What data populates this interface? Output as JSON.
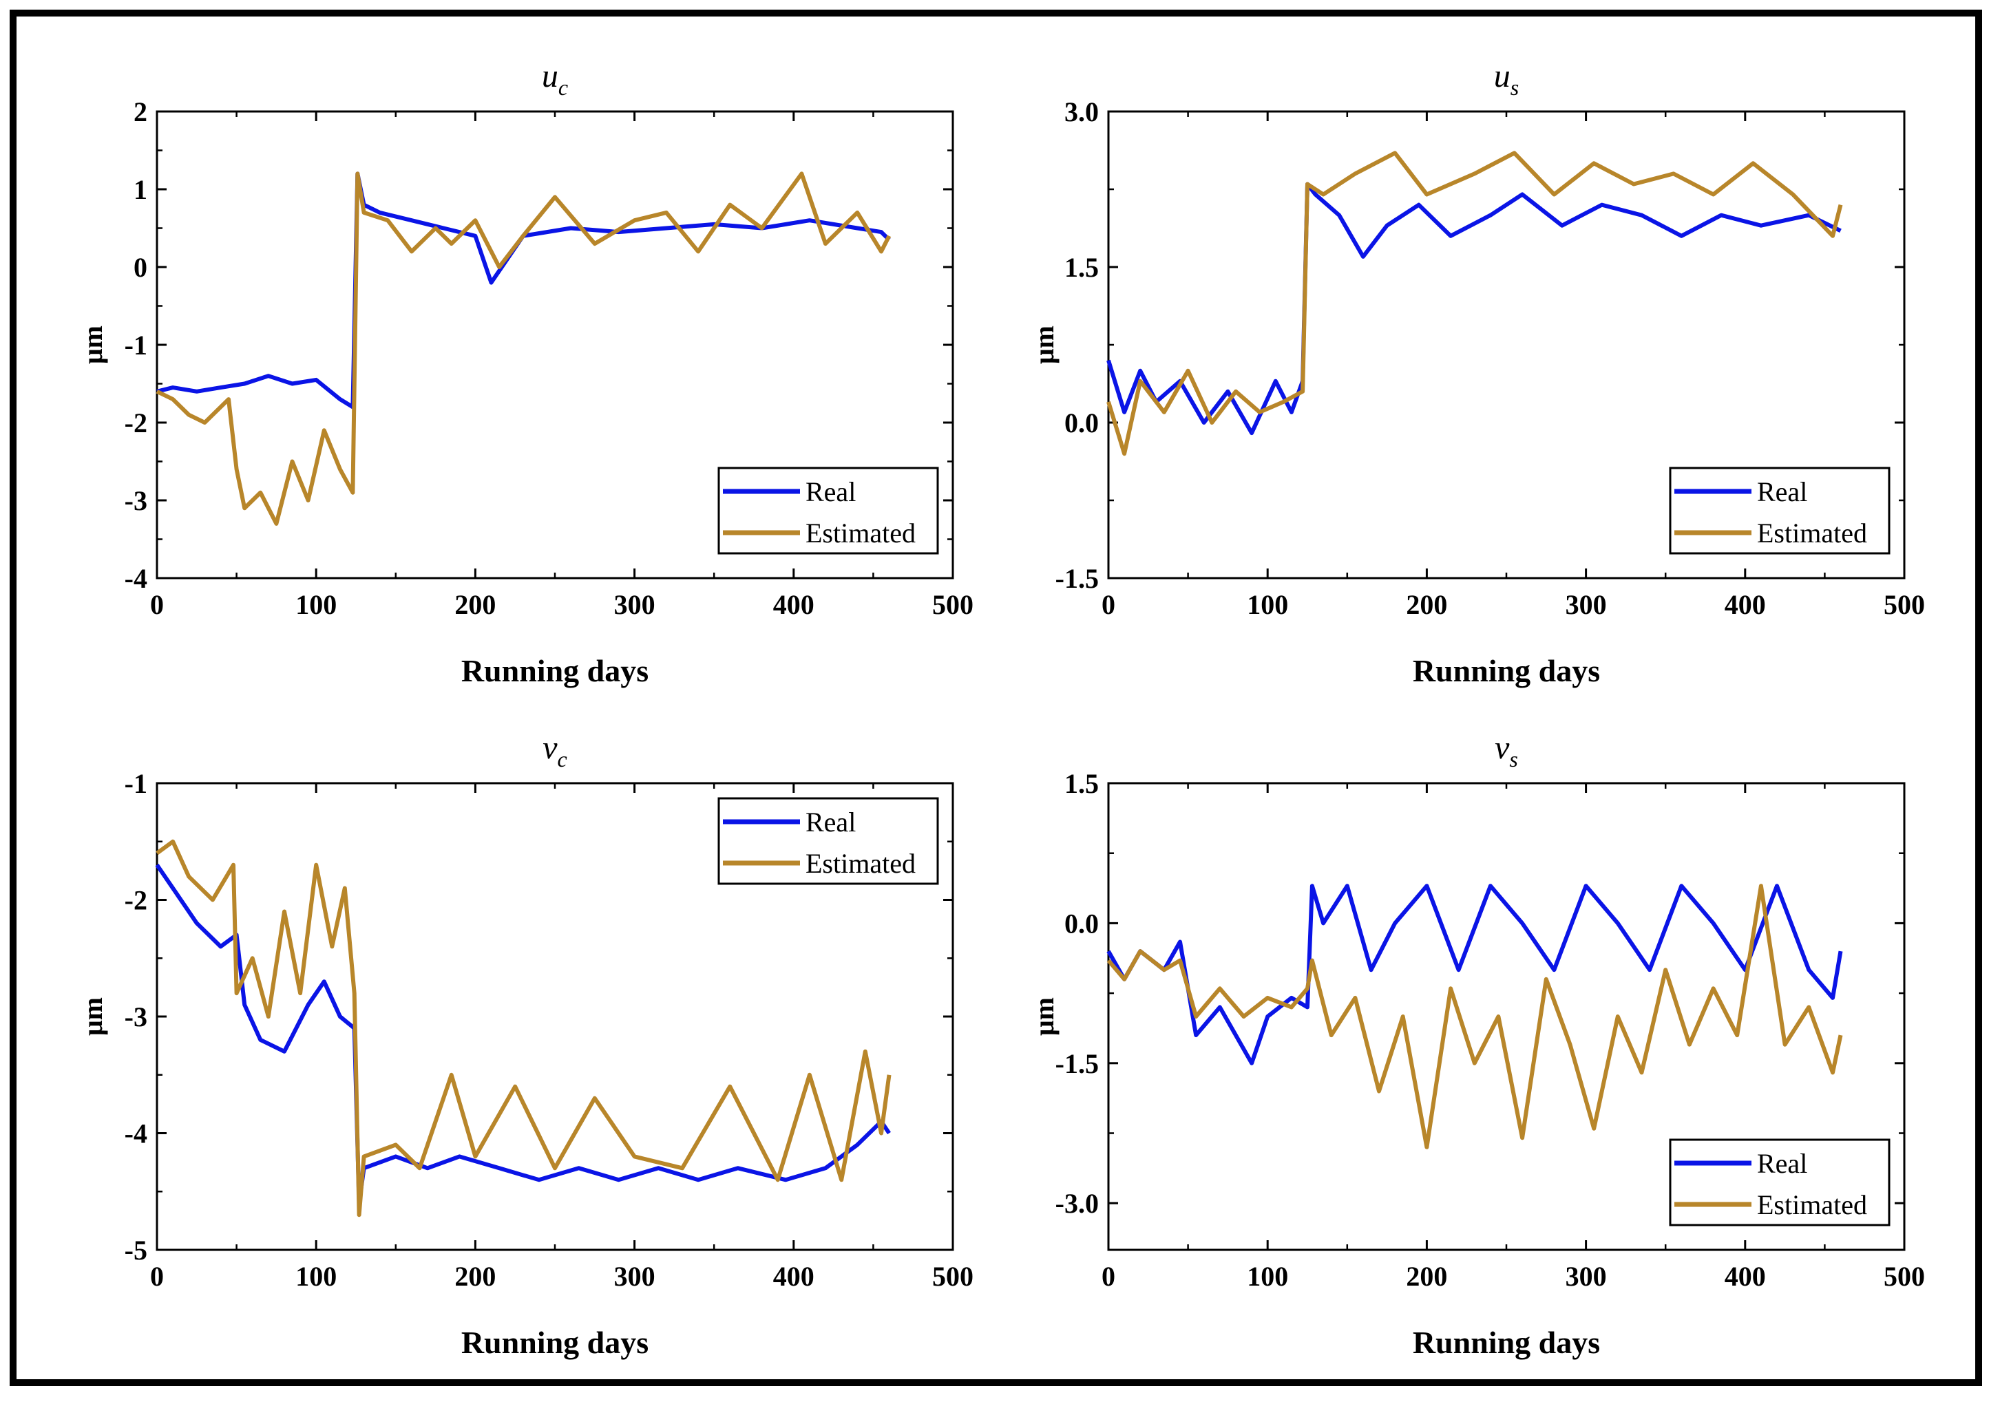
{
  "colors": {
    "real": "#0a14e6",
    "estimated": "#b8862a",
    "axis": "#000000",
    "frame": "#000000"
  },
  "chart_data": [
    {
      "type": "line",
      "title": "u",
      "title_sub": "c",
      "xlabel": "Running days",
      "ylabel": "μm",
      "xlim": [
        0,
        500
      ],
      "ylim": [
        -4,
        2
      ],
      "xticks": [
        0,
        100,
        200,
        300,
        400,
        500
      ],
      "yticks": [
        -4,
        -3,
        -2,
        -1,
        0,
        1,
        2
      ],
      "ytick_labels": [
        "-4",
        "-3",
        "-2",
        "-1",
        "0",
        "1",
        "2"
      ],
      "legend": {
        "position": "bottom-right",
        "labels": [
          "Real",
          "Estimated"
        ]
      },
      "series": [
        {
          "name": "Real",
          "x": [
            0,
            10,
            25,
            40,
            55,
            70,
            85,
            100,
            115,
            123,
            126,
            130,
            140,
            160,
            180,
            200,
            210,
            230,
            260,
            290,
            320,
            350,
            380,
            410,
            440,
            455,
            460
          ],
          "y": [
            -1.6,
            -1.55,
            -1.6,
            -1.55,
            -1.5,
            -1.4,
            -1.5,
            -1.45,
            -1.7,
            -1.8,
            1.2,
            0.8,
            0.7,
            0.6,
            0.5,
            0.4,
            -0.2,
            0.4,
            0.5,
            0.45,
            0.5,
            0.55,
            0.5,
            0.6,
            0.5,
            0.45,
            0.35
          ]
        },
        {
          "name": "Estimated",
          "x": [
            0,
            10,
            20,
            30,
            45,
            50,
            55,
            65,
            75,
            85,
            95,
            105,
            115,
            123,
            126,
            130,
            145,
            160,
            175,
            185,
            200,
            215,
            230,
            250,
            275,
            300,
            320,
            340,
            360,
            380,
            405,
            420,
            440,
            455,
            460
          ],
          "y": [
            -1.6,
            -1.7,
            -1.9,
            -2.0,
            -1.7,
            -2.6,
            -3.1,
            -2.9,
            -3.3,
            -2.5,
            -3.0,
            -2.1,
            -2.6,
            -2.9,
            1.2,
            0.7,
            0.6,
            0.2,
            0.5,
            0.3,
            0.6,
            0.0,
            0.4,
            0.9,
            0.3,
            0.6,
            0.7,
            0.2,
            0.8,
            0.5,
            1.2,
            0.3,
            0.7,
            0.2,
            0.4
          ]
        }
      ]
    },
    {
      "type": "line",
      "title": "u",
      "title_sub": "s",
      "xlabel": "Running days",
      "ylabel": "μm",
      "xlim": [
        0,
        500
      ],
      "ylim": [
        -1.5,
        3.0
      ],
      "xticks": [
        0,
        100,
        200,
        300,
        400,
        500
      ],
      "yticks": [
        -1.5,
        0.0,
        1.5,
        3.0
      ],
      "ytick_labels": [
        "-1.5",
        "0.0",
        "1.5",
        "3.0"
      ],
      "legend": {
        "position": "bottom-right",
        "labels": [
          "Real",
          "Estimated"
        ]
      },
      "series": [
        {
          "name": "Real",
          "x": [
            0,
            10,
            20,
            30,
            45,
            60,
            75,
            90,
            105,
            115,
            122,
            125,
            130,
            145,
            160,
            175,
            195,
            215,
            240,
            260,
            285,
            310,
            335,
            360,
            385,
            410,
            440,
            460
          ],
          "y": [
            0.6,
            0.1,
            0.5,
            0.2,
            0.4,
            0.0,
            0.3,
            -0.1,
            0.4,
            0.1,
            0.4,
            2.3,
            2.2,
            2.0,
            1.6,
            1.9,
            2.1,
            1.8,
            2.0,
            2.2,
            1.9,
            2.1,
            2.0,
            1.8,
            2.0,
            1.9,
            2.0,
            1.85
          ]
        },
        {
          "name": "Estimated",
          "x": [
            0,
            10,
            20,
            35,
            50,
            65,
            80,
            95,
            110,
            122,
            125,
            135,
            155,
            180,
            200,
            230,
            255,
            280,
            305,
            330,
            355,
            380,
            405,
            430,
            455,
            460
          ],
          "y": [
            0.2,
            -0.3,
            0.4,
            0.1,
            0.5,
            0.0,
            0.3,
            0.1,
            0.2,
            0.3,
            2.3,
            2.2,
            2.4,
            2.6,
            2.2,
            2.4,
            2.6,
            2.2,
            2.5,
            2.3,
            2.4,
            2.2,
            2.5,
            2.2,
            1.8,
            2.1
          ]
        }
      ]
    },
    {
      "type": "line",
      "title": "v",
      "title_sub": "c",
      "xlabel": "Running days",
      "ylabel": "μm",
      "xlim": [
        0,
        500
      ],
      "ylim": [
        -5,
        -1
      ],
      "xticks": [
        0,
        100,
        200,
        300,
        400,
        500
      ],
      "yticks": [
        -5,
        -4,
        -3,
        -2,
        -1
      ],
      "ytick_labels": [
        "-5",
        "-4",
        "-3",
        "-2",
        "-1"
      ],
      "legend": {
        "position": "top-right",
        "labels": [
          "Real",
          "Estimated"
        ]
      },
      "series": [
        {
          "name": "Real",
          "x": [
            0,
            10,
            25,
            40,
            50,
            55,
            65,
            80,
            95,
            105,
            115,
            124,
            127,
            130,
            150,
            170,
            190,
            215,
            240,
            265,
            290,
            315,
            340,
            365,
            395,
            420,
            440,
            455,
            460
          ],
          "y": [
            -1.7,
            -1.9,
            -2.2,
            -2.4,
            -2.3,
            -2.9,
            -3.2,
            -3.3,
            -2.9,
            -2.7,
            -3.0,
            -3.1,
            -4.6,
            -4.3,
            -4.2,
            -4.3,
            -4.2,
            -4.3,
            -4.4,
            -4.3,
            -4.4,
            -4.3,
            -4.4,
            -4.3,
            -4.4,
            -4.3,
            -4.1,
            -3.9,
            -4.0
          ]
        },
        {
          "name": "Estimated",
          "x": [
            0,
            10,
            20,
            35,
            48,
            50,
            60,
            70,
            80,
            90,
            100,
            110,
            118,
            124,
            127,
            130,
            150,
            165,
            185,
            200,
            225,
            250,
            275,
            300,
            330,
            360,
            390,
            410,
            430,
            445,
            455,
            460
          ],
          "y": [
            -1.6,
            -1.5,
            -1.8,
            -2.0,
            -1.7,
            -2.8,
            -2.5,
            -3.0,
            -2.1,
            -2.8,
            -1.7,
            -2.4,
            -1.9,
            -2.8,
            -4.7,
            -4.2,
            -4.1,
            -4.3,
            -3.5,
            -4.2,
            -3.6,
            -4.3,
            -3.7,
            -4.2,
            -4.3,
            -3.6,
            -4.4,
            -3.5,
            -4.4,
            -3.3,
            -4.0,
            -3.5
          ]
        }
      ]
    },
    {
      "type": "line",
      "title": "v",
      "title_sub": "s",
      "xlabel": "Running days",
      "ylabel": "μm",
      "xlim": [
        0,
        500
      ],
      "ylim": [
        -3.5,
        1.5
      ],
      "xticks": [
        0,
        100,
        200,
        300,
        400,
        500
      ],
      "yticks": [
        -3.0,
        -1.5,
        0.0,
        1.5
      ],
      "ytick_labels": [
        "-3.0",
        "-1.5",
        "0.0",
        "1.5"
      ],
      "legend": {
        "position": "bottom-right",
        "labels": [
          "Real",
          "Estimated"
        ]
      },
      "series": [
        {
          "name": "Real",
          "x": [
            0,
            10,
            20,
            35,
            45,
            55,
            70,
            90,
            100,
            115,
            125,
            128,
            135,
            150,
            165,
            180,
            200,
            220,
            240,
            260,
            280,
            300,
            320,
            340,
            360,
            380,
            400,
            420,
            440,
            455,
            460
          ],
          "y": [
            -0.3,
            -0.6,
            -0.3,
            -0.5,
            -0.2,
            -1.2,
            -0.9,
            -1.5,
            -1.0,
            -0.8,
            -0.9,
            0.4,
            0.0,
            0.4,
            -0.5,
            0.0,
            0.4,
            -0.5,
            0.4,
            0.0,
            -0.5,
            0.4,
            0.0,
            -0.5,
            0.4,
            0.0,
            -0.5,
            0.4,
            -0.5,
            -0.8,
            -0.3
          ]
        },
        {
          "name": "Estimated",
          "x": [
            0,
            10,
            20,
            35,
            45,
            55,
            70,
            85,
            100,
            115,
            125,
            128,
            140,
            155,
            170,
            185,
            200,
            215,
            230,
            245,
            260,
            275,
            290,
            305,
            320,
            335,
            350,
            365,
            380,
            395,
            410,
            425,
            440,
            455,
            460
          ],
          "y": [
            -0.4,
            -0.6,
            -0.3,
            -0.5,
            -0.4,
            -1.0,
            -0.7,
            -1.0,
            -0.8,
            -0.9,
            -0.7,
            -0.4,
            -1.2,
            -0.8,
            -1.8,
            -1.0,
            -2.4,
            -0.7,
            -1.5,
            -1.0,
            -2.3,
            -0.6,
            -1.3,
            -2.2,
            -1.0,
            -1.6,
            -0.5,
            -1.3,
            -0.7,
            -1.2,
            0.4,
            -1.3,
            -0.9,
            -1.6,
            -1.2
          ]
        }
      ]
    }
  ]
}
